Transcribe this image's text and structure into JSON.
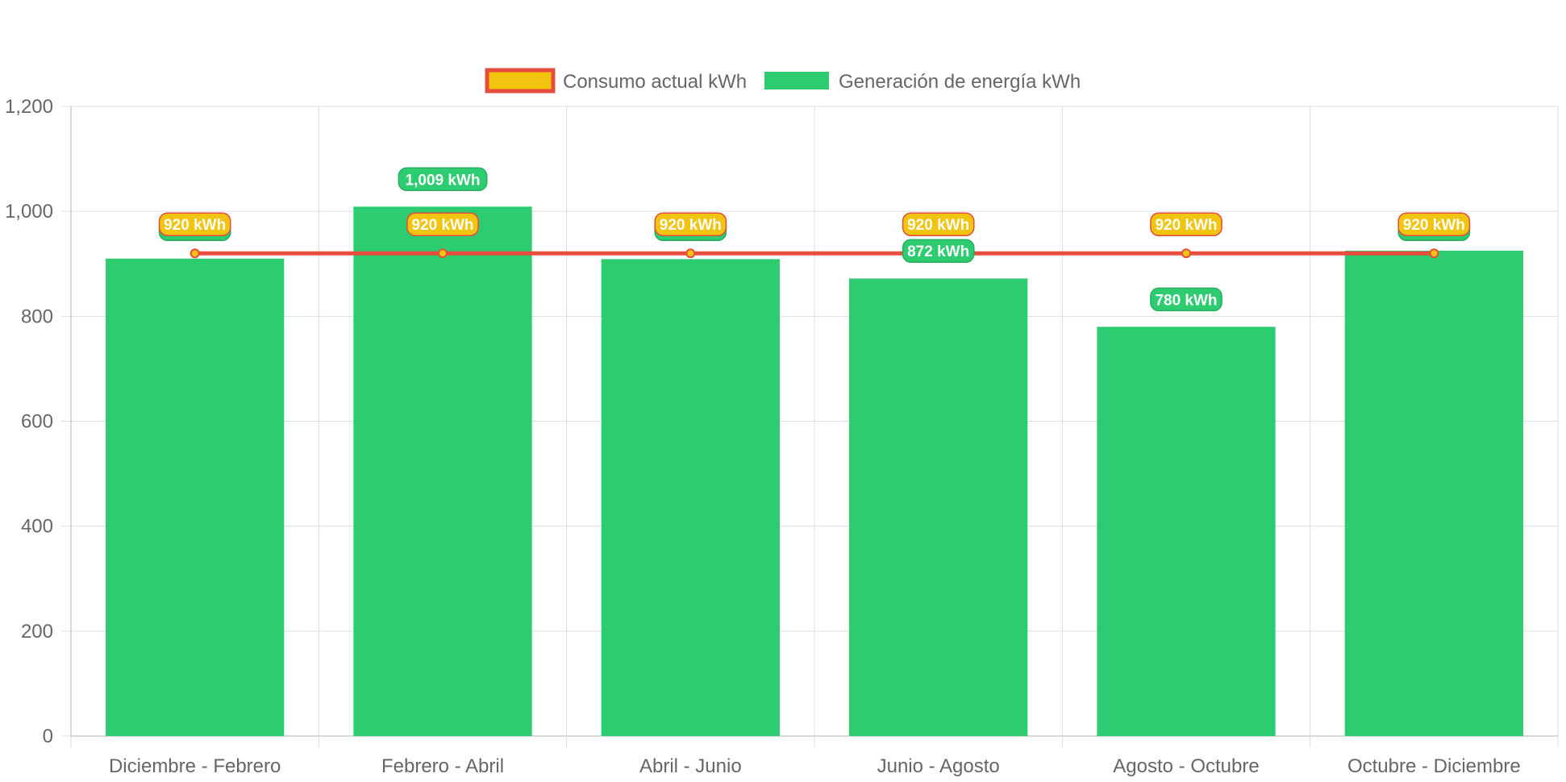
{
  "chart_data": {
    "type": "bar",
    "categories": [
      "Diciembre - Febrero",
      "Febrero - Abril",
      "Abril - Junio",
      "Junio - Agosto",
      "Agosto - Octubre",
      "Octubre - Diciembre"
    ],
    "series": [
      {
        "name": "Consumo actual kWh",
        "type": "line",
        "values": [
          920,
          920,
          920,
          920,
          920,
          920
        ],
        "labels": [
          "920 kWh",
          "920 kWh",
          "920 kWh",
          "920 kWh",
          "920 kWh",
          "920 kWh"
        ],
        "color": "#e74c3c",
        "fill_color": "#f1c40f"
      },
      {
        "name": "Generación de energía kWh",
        "type": "bar",
        "values": [
          910,
          1009,
          909,
          872,
          780,
          925
        ],
        "labels": [
          "910 kWh",
          "1,009 kWh",
          "909 kWh",
          "872 kWh",
          "780 kWh",
          "925 kWh"
        ],
        "color": "#2ecc71",
        "border_color": "#27ae60"
      }
    ],
    "y_ticks": [
      "0",
      "200",
      "400",
      "600",
      "800",
      "1,000",
      "1,200"
    ],
    "ylim": [
      0,
      1200
    ],
    "y_step": 200,
    "grid": true,
    "legend_position": "top",
    "title": "",
    "xlabel": "",
    "ylabel": ""
  }
}
